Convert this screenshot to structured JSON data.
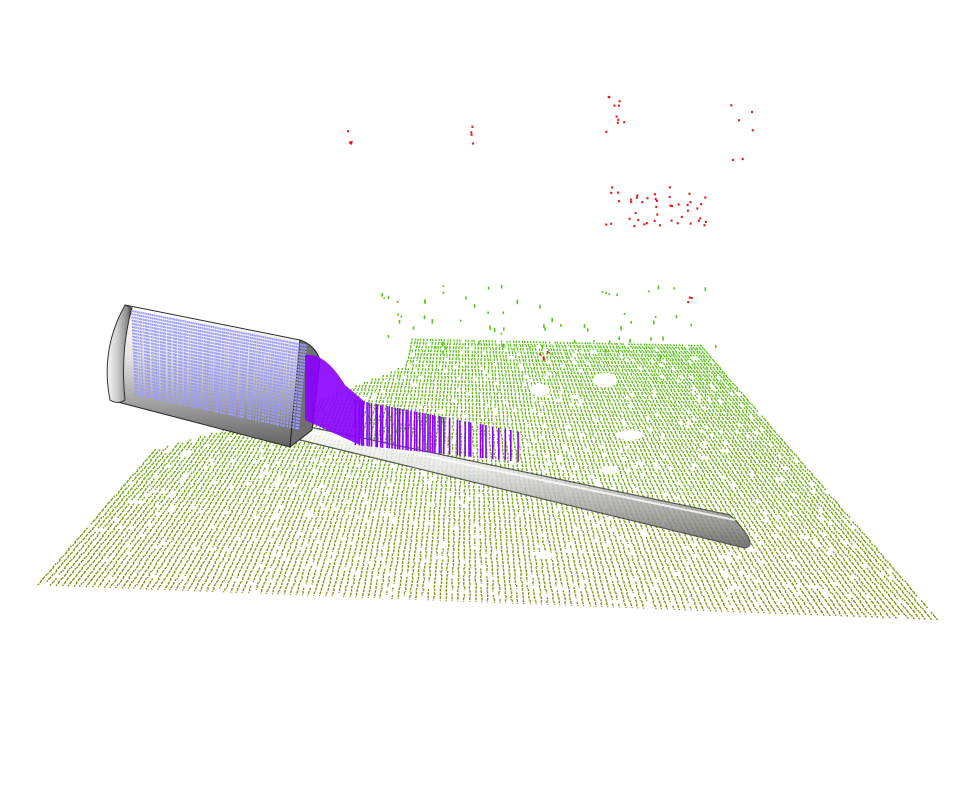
{
  "scene": {
    "background": "#ffffff",
    "colors": {
      "ground_near": "#8a8a10",
      "ground_mid": "#6fa810",
      "ground_far": "#58c418",
      "outlier": "#e41a1a",
      "cylinder_fit": "#9b9bff",
      "cylinder_dense": "#8a00ff",
      "pipe_body": "#c8c8c8",
      "pipe_edge": "#404040"
    },
    "objects": [
      {
        "name": "ground-plane-point-cloud",
        "description_icon": "point-cloud"
      },
      {
        "name": "pipe-model",
        "description_icon": "cylinder"
      },
      {
        "name": "fitted-cylinder-points",
        "description_icon": "point-cloud"
      },
      {
        "name": "outlier-points",
        "description_icon": "point-cloud"
      }
    ]
  }
}
